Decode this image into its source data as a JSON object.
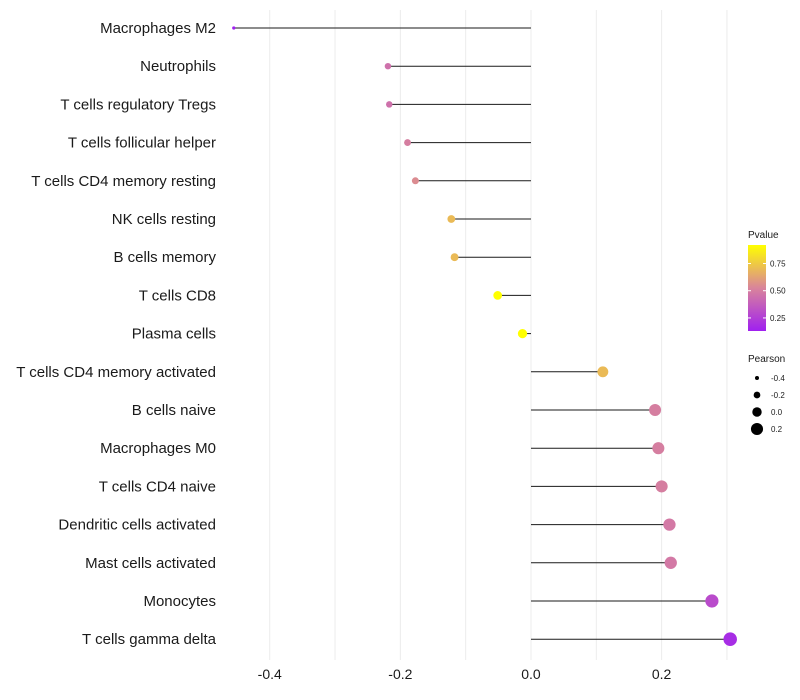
{
  "chart_data": {
    "type": "lollipop",
    "title": "",
    "xlabel": "",
    "ylabel": "",
    "xlim": [
      -0.47,
      0.32
    ],
    "x_ticks": [
      -0.4,
      -0.2,
      0.0,
      0.2
    ],
    "x_tick_labels": [
      "-0.4",
      "-0.2",
      "0.0",
      "0.2"
    ],
    "grid": true,
    "categories": [
      "Macrophages M2",
      "Neutrophils",
      "T cells regulatory  Tregs",
      "T cells follicular helper",
      "T cells CD4 memory resting",
      "NK cells resting",
      "B cells memory",
      "T cells CD8",
      "Plasma cells",
      "T cells CD4 memory activated",
      "B cells naive",
      "Macrophages M0",
      "T cells CD4 naive",
      "Dendritic cells activated",
      "Mast cells activated",
      "Monocytes",
      "T cells gamma delta"
    ],
    "pearson": [
      -0.455,
      -0.219,
      -0.217,
      -0.189,
      -0.177,
      -0.122,
      -0.117,
      -0.051,
      -0.013,
      0.11,
      0.19,
      0.195,
      0.2,
      0.212,
      0.214,
      0.277,
      0.305
    ],
    "pvalue": [
      0.05,
      0.45,
      0.45,
      0.5,
      0.55,
      0.7,
      0.7,
      0.92,
      0.98,
      0.7,
      0.5,
      0.5,
      0.5,
      0.48,
      0.48,
      0.3,
      0.18
    ],
    "legend_color": {
      "title": "Pvalue",
      "ticks": [
        0.25,
        0.5,
        0.75
      ],
      "tick_labels": [
        "0.25",
        "0.50",
        "0.75"
      ],
      "range": [
        0.13,
        0.92
      ],
      "low_color": "#a020f0",
      "mid_color": "#d9849b",
      "high_color": "#ffff00"
    },
    "legend_size": {
      "title": "Pearson",
      "values": [
        -0.4,
        -0.2,
        0.0,
        0.2
      ],
      "labels": [
        "-0.4",
        "-0.2",
        "0.0",
        "0.2"
      ]
    },
    "legend_position": "right"
  }
}
